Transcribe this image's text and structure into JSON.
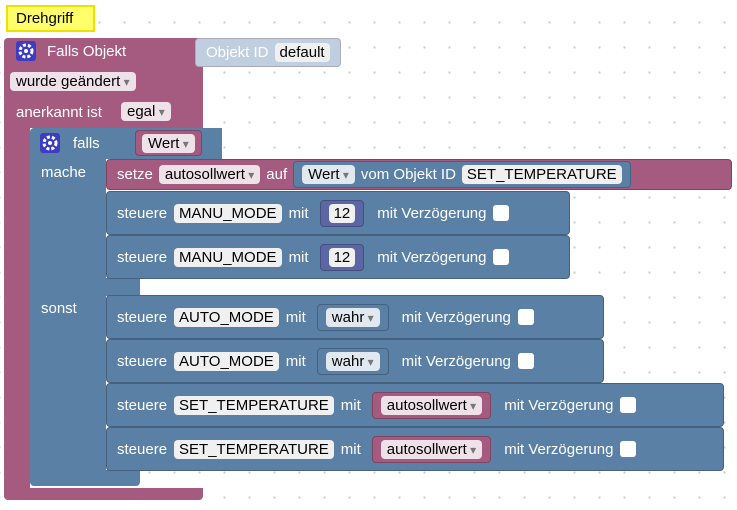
{
  "comment": "Drehgriff",
  "trigger": {
    "title": "Falls Objekt",
    "object_id_label": "Objekt ID",
    "object_id": "default",
    "change": "wurde geändert",
    "ack_label": "anerkannt ist",
    "ack": "egal"
  },
  "if_block": {
    "title": "falls",
    "condition": "Wert",
    "then_label": "mache",
    "else_label": "sonst"
  },
  "then": [
    {
      "verb": "setze",
      "variable": "autosollwert",
      "to": "auf",
      "value_field": "Wert",
      "from": "vom Objekt ID",
      "object_id": "SET_TEMPERATURE"
    },
    {
      "verb": "steuere",
      "object": "MANU_MODE",
      "with": "mit",
      "value": 12,
      "delay_label": "mit Verzögerung"
    },
    {
      "verb": "steuere",
      "object": "MANU_MODE",
      "with": "mit",
      "value": 12,
      "delay_label": "mit Verzögerung"
    }
  ],
  "else": [
    {
      "verb": "steuere",
      "object": "AUTO_MODE",
      "with": "mit",
      "value": "wahr",
      "delay_label": "mit Verzögerung"
    },
    {
      "verb": "steuere",
      "object": "AUTO_MODE",
      "with": "mit",
      "value": "wahr",
      "delay_label": "mit Verzögerung"
    },
    {
      "verb": "steuere",
      "object": "SET_TEMPERATURE",
      "with": "mit",
      "value": "autosollwert",
      "delay_label": "mit Verzögerung"
    },
    {
      "verb": "steuere",
      "object": "SET_TEMPERATURE",
      "with": "mit",
      "value": "autosollwert",
      "delay_label": "mit Verzögerung"
    }
  ]
}
